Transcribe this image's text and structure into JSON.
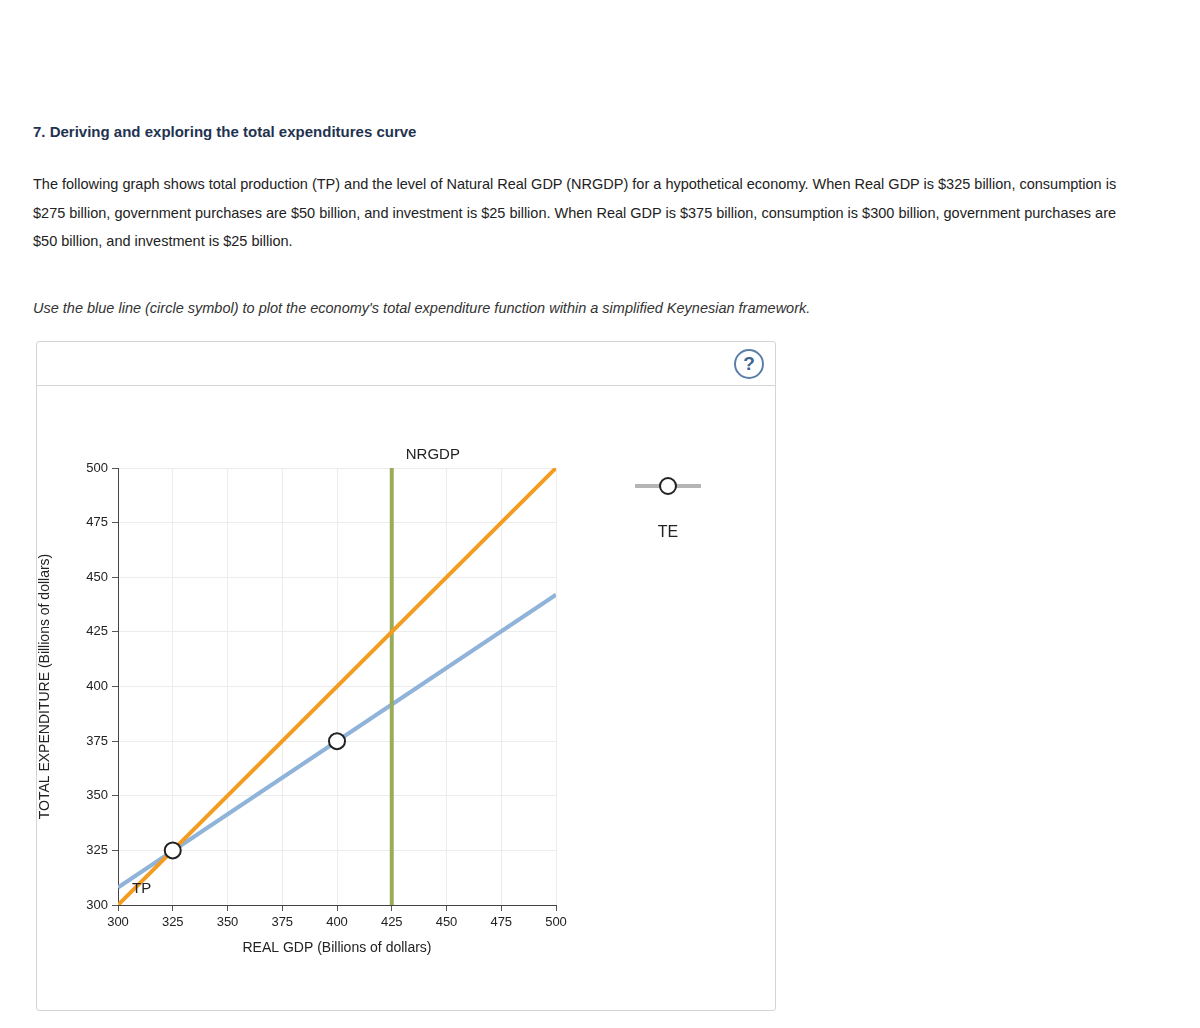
{
  "header": {
    "title": "7. Deriving and exploring the total expenditures curve",
    "paragraph": "The following graph shows total production (TP) and the level of Natural Real GDP (NRGDP) for a hypothetical economy. When Real GDP is $325 billion, consumption is $275 billion, government purchases are $50 billion, and investment is $25 billion. When Real GDP is $375 billion, consumption is $300 billion, government purchases are $50 billion, and investment is $25 billion.",
    "instruction": "Use the blue line (circle symbol) to plot the economy's total expenditure function within a simplified Keynesian framework.",
    "help": "?"
  },
  "chart_data": {
    "type": "line",
    "x_label": "REAL GDP (Billions of dollars)",
    "y_label": "TOTAL EXPENDITURE (Billions of dollars)",
    "xlim": [
      300,
      500
    ],
    "xticks": [
      300,
      325,
      350,
      375,
      400,
      425,
      450,
      475,
      500
    ],
    "ylim": [
      300,
      500
    ],
    "yticks": [
      300,
      325,
      350,
      375,
      400,
      425,
      450,
      475,
      500
    ],
    "grid": true,
    "legend": "right",
    "series": [
      {
        "name": "TP",
        "color": "#f39c1f",
        "x": [
          300,
          500
        ],
        "values": [
          300,
          500
        ],
        "marker": "none"
      },
      {
        "name": "NRGDP",
        "color": "#9aab5a",
        "x": [
          425,
          425
        ],
        "values": [
          300,
          500
        ],
        "marker": "none"
      },
      {
        "color": "#8fb3d9",
        "x": [
          300,
          500
        ],
        "values": [
          308,
          442
        ],
        "marker": "none"
      },
      {
        "name": "TE",
        "color": "#8fb3d9",
        "x": [
          325,
          400
        ],
        "values": [
          325,
          375
        ],
        "marker": "circle",
        "type": "scatter"
      }
    ]
  }
}
